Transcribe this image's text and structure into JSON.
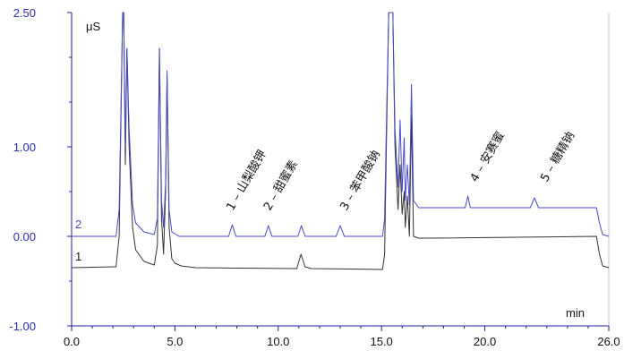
{
  "chart_data": {
    "type": "line",
    "xlabel": "min",
    "ylabel": "μS",
    "xlim": [
      0.0,
      26.0
    ],
    "ylim": [
      -1.0,
      2.5
    ],
    "x_ticks": [
      "0.0",
      "5.0",
      "10.0",
      "15.0",
      "20.0",
      "26.0"
    ],
    "x_tick_values": [
      0,
      5,
      10,
      15,
      20,
      26
    ],
    "y_ticks": [
      "2.50",
      "1.00",
      "0.00",
      "-1.00"
    ],
    "y_tick_values": [
      2.5,
      1.0,
      0.0,
      -1.0
    ],
    "colors": {
      "axis": "#1f1f99",
      "trace1": "#333333",
      "trace2": "#4a4ac8",
      "tick_y": "#2b2bb3"
    },
    "series": [
      {
        "name": "1",
        "baseline": -0.35,
        "end_level": -0.35,
        "start_x": 0,
        "end_x": 26,
        "points": [
          [
            0,
            -0.35
          ],
          [
            2.15,
            -0.34
          ],
          [
            2.3,
            0.0
          ],
          [
            2.4,
            1.5
          ],
          [
            2.47,
            2.5
          ],
          [
            2.52,
            2.5
          ],
          [
            2.6,
            0.8
          ],
          [
            2.68,
            2.1
          ],
          [
            2.78,
            1.0
          ],
          [
            2.95,
            0.1
          ],
          [
            3.1,
            -0.15
          ],
          [
            3.5,
            -0.28
          ],
          [
            4.0,
            -0.32
          ],
          [
            4.15,
            -0.1
          ],
          [
            4.25,
            2.1
          ],
          [
            4.35,
            0.2
          ],
          [
            4.45,
            -0.2
          ],
          [
            4.55,
            0.5
          ],
          [
            4.62,
            1.8
          ],
          [
            4.72,
            0.1
          ],
          [
            4.85,
            -0.25
          ],
          [
            5.0,
            -0.3
          ],
          [
            5.3,
            -0.33
          ],
          [
            6.0,
            -0.35
          ],
          [
            10.9,
            -0.36
          ],
          [
            11.1,
            -0.2
          ],
          [
            11.3,
            -0.34
          ],
          [
            11.6,
            -0.36
          ],
          [
            15.05,
            -0.37
          ],
          [
            15.15,
            -0.2
          ],
          [
            15.25,
            1.2
          ],
          [
            15.35,
            2.5
          ],
          [
            15.55,
            2.5
          ],
          [
            15.65,
            1.0
          ],
          [
            15.8,
            0.3
          ],
          [
            15.9,
            0.8
          ],
          [
            16.0,
            0.25
          ],
          [
            16.1,
            0.5
          ],
          [
            16.15,
            0.1
          ],
          [
            16.25,
            0.45
          ],
          [
            16.35,
            0.0
          ],
          [
            16.45,
            1.35
          ],
          [
            16.55,
            0.0
          ],
          [
            16.8,
            -0.02
          ],
          [
            17.5,
            -0.02
          ],
          [
            25.4,
            0.0
          ],
          [
            25.55,
            -0.2
          ],
          [
            25.7,
            -0.33
          ],
          [
            26.0,
            -0.35
          ]
        ]
      },
      {
        "name": "2",
        "baseline": 0.0,
        "start_x": 0,
        "end_x": 26,
        "points": [
          [
            0,
            0.0
          ],
          [
            2.15,
            0.0
          ],
          [
            2.3,
            0.3
          ],
          [
            2.4,
            1.6
          ],
          [
            2.47,
            2.5
          ],
          [
            2.52,
            2.5
          ],
          [
            2.6,
            1.0
          ],
          [
            2.68,
            2.1
          ],
          [
            2.78,
            1.2
          ],
          [
            2.95,
            0.35
          ],
          [
            3.1,
            0.15
          ],
          [
            3.5,
            0.05
          ],
          [
            4.0,
            0.02
          ],
          [
            4.15,
            0.2
          ],
          [
            4.25,
            2.1
          ],
          [
            4.35,
            0.4
          ],
          [
            4.45,
            0.1
          ],
          [
            4.55,
            0.6
          ],
          [
            4.62,
            1.85
          ],
          [
            4.72,
            0.3
          ],
          [
            4.85,
            0.05
          ],
          [
            5.2,
            0.0
          ],
          [
            7.6,
            0.0
          ],
          [
            7.78,
            0.13
          ],
          [
            7.95,
            0.0
          ],
          [
            9.35,
            0.0
          ],
          [
            9.52,
            0.12
          ],
          [
            9.7,
            0.0
          ],
          [
            10.95,
            0.0
          ],
          [
            11.12,
            0.12
          ],
          [
            11.3,
            0.0
          ],
          [
            12.8,
            0.0
          ],
          [
            13.0,
            0.12
          ],
          [
            13.2,
            0.0
          ],
          [
            15.05,
            0.0
          ],
          [
            15.15,
            0.2
          ],
          [
            15.25,
            1.4
          ],
          [
            15.35,
            2.5
          ],
          [
            15.55,
            2.5
          ],
          [
            15.65,
            1.2
          ],
          [
            15.8,
            0.55
          ],
          [
            15.9,
            1.3
          ],
          [
            16.0,
            0.5
          ],
          [
            16.1,
            1.1
          ],
          [
            16.15,
            0.4
          ],
          [
            16.25,
            0.8
          ],
          [
            16.35,
            0.35
          ],
          [
            16.45,
            1.7
          ],
          [
            16.55,
            0.4
          ],
          [
            16.8,
            0.32
          ],
          [
            17.5,
            0.32
          ],
          [
            19.05,
            0.32
          ],
          [
            19.18,
            0.45
          ],
          [
            19.3,
            0.32
          ],
          [
            22.2,
            0.32
          ],
          [
            22.4,
            0.43
          ],
          [
            22.6,
            0.32
          ],
          [
            25.4,
            0.32
          ],
          [
            25.55,
            0.15
          ],
          [
            25.7,
            0.02
          ],
          [
            26.0,
            0.0
          ]
        ]
      }
    ],
    "annotations": [
      {
        "text": "1 – 山梨酸钾",
        "x": 7.8,
        "y": 0.28
      },
      {
        "text": "2 – 甜蜜素",
        "x": 9.6,
        "y": 0.28
      },
      {
        "text": "3 – 苯甲酸钠",
        "x": 13.3,
        "y": 0.28
      },
      {
        "text": "4 – 安赛蜜",
        "x": 19.6,
        "y": 0.6
      },
      {
        "text": "5 – 糖精钠",
        "x": 23.0,
        "y": 0.6
      }
    ],
    "series_labels": [
      {
        "text": "2",
        "x": 0.0,
        "y": 0.09
      },
      {
        "text": "1",
        "x": 0.0,
        "y": -0.27
      }
    ],
    "grid": false,
    "legend": "none"
  }
}
